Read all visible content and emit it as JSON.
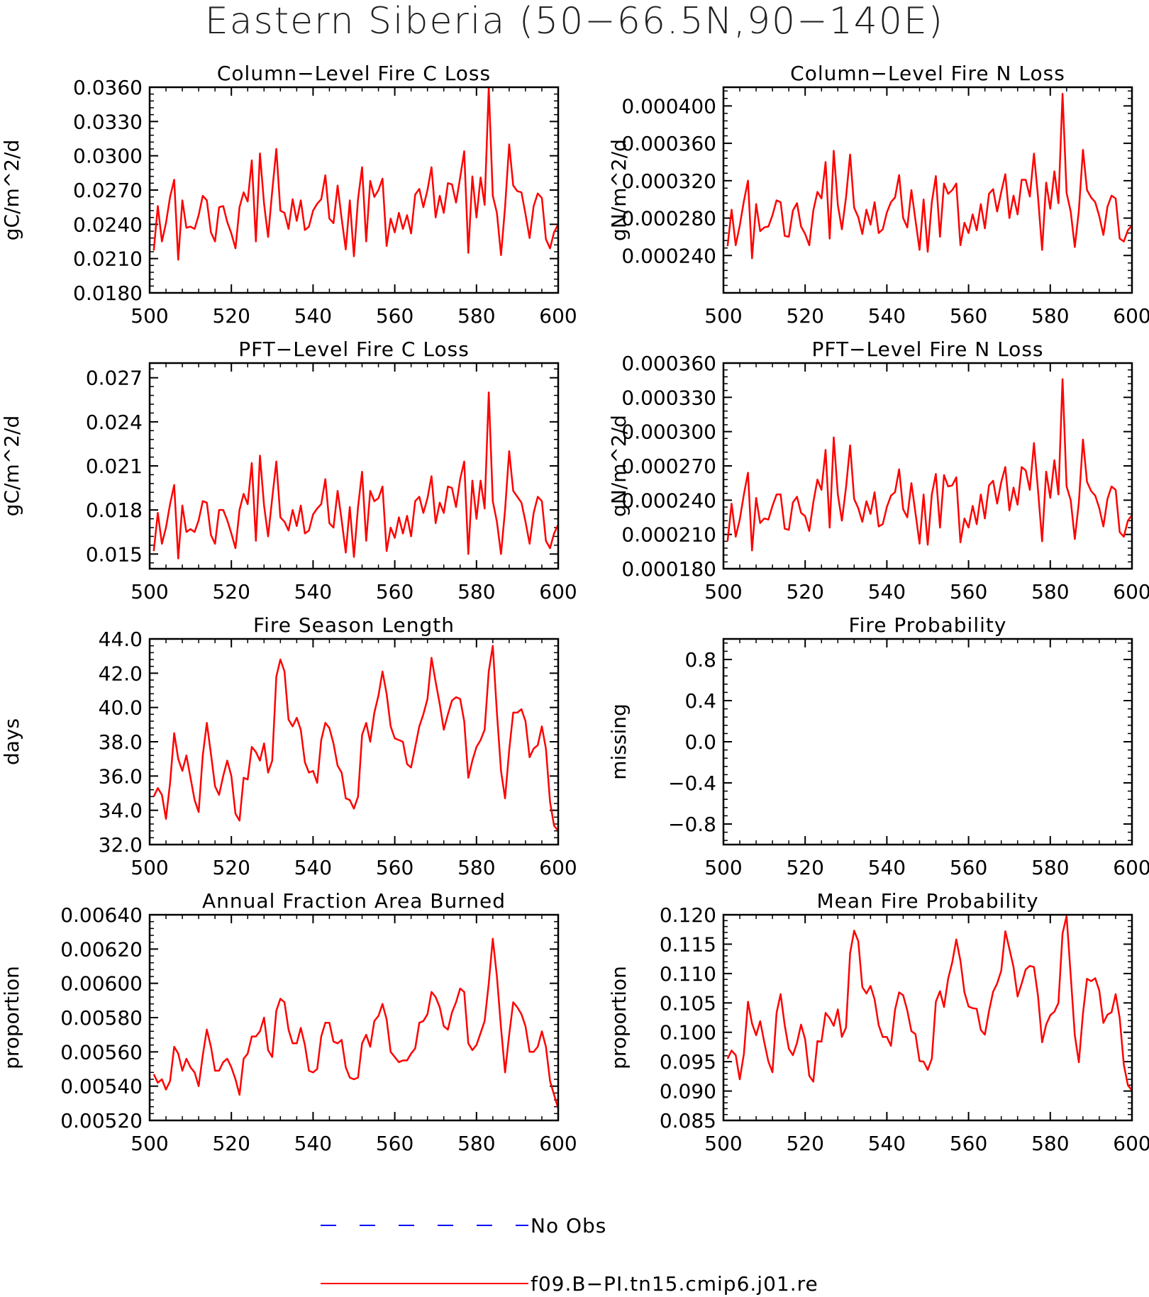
{
  "title": "Eastern Siberia (50−66.5N,90−140E)",
  "colors": {
    "model": "#ff0000",
    "obs": "#0000ff",
    "axis": "#000000"
  },
  "legend": [
    {
      "label": "No Obs",
      "style": "dashed",
      "color": "#0000ff"
    },
    {
      "label": "f09.B−PI.tn15.cmip6.j01.re",
      "style": "solid",
      "color": "#ff0000"
    }
  ],
  "chart_data": [
    {
      "type": "line",
      "title": "Column−Level Fire C Loss",
      "ylabel": "gC/m^2/d",
      "xlim": [
        500,
        600
      ],
      "ylim": [
        0.018,
        0.036
      ],
      "xticks": [
        500,
        520,
        540,
        560,
        580,
        600
      ],
      "yticks": [
        0.018,
        0.021,
        0.024,
        0.027,
        0.03,
        0.033,
        0.036
      ],
      "yticklabels": [
        "0.0180",
        "0.0210",
        "0.0240",
        "0.0270",
        "0.0300",
        "0.0330",
        "0.0360"
      ],
      "series": [
        {
          "x_start": 501,
          "values": [
            0.0217,
            0.0256,
            0.0225,
            0.0241,
            0.0264,
            0.0279,
            0.0209,
            0.0261,
            0.0237,
            0.0238,
            0.0236,
            0.0248,
            0.0265,
            0.0261,
            0.0233,
            0.0225,
            0.0255,
            0.0256,
            0.0242,
            0.0232,
            0.0219,
            0.0255,
            0.0268,
            0.026,
            0.0296,
            0.0225,
            0.0302,
            0.0258,
            0.0229,
            0.0269,
            0.0306,
            0.0252,
            0.025,
            0.0236,
            0.0262,
            0.0243,
            0.0261,
            0.0235,
            0.0238,
            0.0252,
            0.0258,
            0.0262,
            0.0283,
            0.0245,
            0.0241,
            0.0274,
            0.0245,
            0.0218,
            0.0261,
            0.0212,
            0.0262,
            0.029,
            0.0225,
            0.0278,
            0.0264,
            0.027,
            0.028,
            0.0221,
            0.0245,
            0.0233,
            0.025,
            0.0236,
            0.0248,
            0.0232,
            0.0266,
            0.0271,
            0.0255,
            0.027,
            0.029,
            0.0246,
            0.0265,
            0.025,
            0.0276,
            0.0275,
            0.0259,
            0.0281,
            0.0304,
            0.0215,
            0.0282,
            0.0246,
            0.0281,
            0.0257,
            0.036,
            0.0265,
            0.025,
            0.0213,
            0.0255,
            0.031,
            0.0274,
            0.0269,
            0.0268,
            0.0249,
            0.0228,
            0.0256,
            0.0267,
            0.0263,
            0.0227,
            0.0219,
            0.0233,
            0.024
          ]
        }
      ]
    },
    {
      "type": "line",
      "title": "Column−Level Fire N Loss",
      "ylabel": "gN/m^2/d",
      "xlim": [
        500,
        600
      ],
      "ylim": [
        0.0002,
        0.00042
      ],
      "xticks": [
        500,
        520,
        540,
        560,
        580,
        600
      ],
      "yticks": [
        0.00024,
        0.00028,
        0.00032,
        0.00036,
        0.0004
      ],
      "yticklabels": [
        "0.000240",
        "0.000280",
        "0.000320",
        "0.000360",
        "0.000400"
      ],
      "series": [
        {
          "x_start": 501,
          "values": [
            0.00025,
            0.000289,
            0.000251,
            0.000272,
            0.000298,
            0.00032,
            0.000237,
            0.000295,
            0.000266,
            0.00027,
            0.000271,
            0.000283,
            0.000299,
            0.000297,
            0.000261,
            0.00026,
            0.000288,
            0.000296,
            0.000271,
            0.000263,
            0.000251,
            0.000288,
            0.000308,
            0.000301,
            0.00034,
            0.000258,
            0.000352,
            0.000294,
            0.000268,
            0.000302,
            0.000348,
            0.000291,
            0.000281,
            0.000263,
            0.000289,
            0.000273,
            0.000297,
            0.000264,
            0.000268,
            0.000286,
            0.000297,
            0.000302,
            0.000326,
            0.00028,
            0.00027,
            0.00031,
            0.000278,
            0.000246,
            0.0003,
            0.000244,
            0.000297,
            0.000325,
            0.00026,
            0.000317,
            0.000306,
            0.00031,
            0.000317,
            0.000251,
            0.000275,
            0.000264,
            0.000284,
            0.000267,
            0.000295,
            0.000269,
            0.000306,
            0.000311,
            0.000287,
            0.000308,
            0.000327,
            0.00028,
            0.000304,
            0.000284,
            0.000321,
            0.000321,
            0.000303,
            0.000349,
            0.000303,
            0.000246,
            0.000318,
            0.00029,
            0.00033,
            0.000296,
            0.000413,
            0.000307,
            0.000287,
            0.000249,
            0.000288,
            0.000353,
            0.00031,
            0.000302,
            0.000297,
            0.000282,
            0.000262,
            0.000292,
            0.000304,
            0.000301,
            0.000258,
            0.000255,
            0.000267,
            0.000272
          ]
        }
      ]
    },
    {
      "type": "line",
      "title": "PFT−Level Fire C Loss",
      "ylabel": "gC/m^2/d",
      "xlim": [
        500,
        600
      ],
      "ylim": [
        0.014,
        0.028
      ],
      "xticks": [
        500,
        520,
        540,
        560,
        580,
        600
      ],
      "yticks": [
        0.015,
        0.018,
        0.021,
        0.024,
        0.027
      ],
      "yticklabels": [
        "0.015",
        "0.018",
        "0.021",
        "0.024",
        "0.027"
      ],
      "series": [
        {
          "x_start": 501,
          "values": [
            0.0152,
            0.0178,
            0.0157,
            0.0168,
            0.0184,
            0.0197,
            0.0147,
            0.0183,
            0.0165,
            0.0167,
            0.0165,
            0.0173,
            0.0186,
            0.0185,
            0.0163,
            0.0157,
            0.018,
            0.018,
            0.0173,
            0.0164,
            0.0154,
            0.018,
            0.0191,
            0.0184,
            0.0212,
            0.0159,
            0.0217,
            0.0183,
            0.0162,
            0.0188,
            0.0213,
            0.0175,
            0.0172,
            0.0166,
            0.018,
            0.0169,
            0.0183,
            0.0164,
            0.0166,
            0.0177,
            0.0181,
            0.0184,
            0.0201,
            0.0171,
            0.0168,
            0.0193,
            0.0173,
            0.0151,
            0.0182,
            0.0148,
            0.0182,
            0.0206,
            0.0159,
            0.0193,
            0.0186,
            0.0188,
            0.0196,
            0.0152,
            0.0168,
            0.0161,
            0.0175,
            0.0164,
            0.0176,
            0.0162,
            0.0186,
            0.0189,
            0.0178,
            0.0188,
            0.0203,
            0.0171,
            0.0185,
            0.0178,
            0.0196,
            0.0195,
            0.0182,
            0.0201,
            0.0213,
            0.015,
            0.02,
            0.0174,
            0.02,
            0.0181,
            0.026,
            0.0186,
            0.0172,
            0.015,
            0.018,
            0.022,
            0.0193,
            0.0189,
            0.0185,
            0.0172,
            0.0157,
            0.0178,
            0.0189,
            0.0186,
            0.0159,
            0.0154,
            0.0164,
            0.017
          ]
        }
      ]
    },
    {
      "type": "line",
      "title": "PFT−Level Fire N Loss",
      "ylabel": "gN/m^2/d",
      "xlim": [
        500,
        600
      ],
      "ylim": [
        0.00018,
        0.00036
      ],
      "xticks": [
        500,
        520,
        540,
        560,
        580,
        600
      ],
      "yticks": [
        0.00018,
        0.00021,
        0.00024,
        0.00027,
        0.0003,
        0.00033,
        0.00036
      ],
      "yticklabels": [
        "0.000180",
        "0.000210",
        "0.000240",
        "0.000270",
        "0.000300",
        "0.000330",
        "0.000360"
      ],
      "series": [
        {
          "x_start": 501,
          "values": [
            0.000204,
            0.000237,
            0.000208,
            0.000223,
            0.000245,
            0.000264,
            0.000196,
            0.000242,
            0.00022,
            0.000224,
            0.000223,
            0.000235,
            0.000245,
            0.000245,
            0.000215,
            0.000214,
            0.000238,
            0.000243,
            0.000229,
            0.000226,
            0.000213,
            0.000238,
            0.000258,
            0.000249,
            0.000284,
            0.000216,
            0.000295,
            0.000245,
            0.000222,
            0.000251,
            0.000288,
            0.000241,
            0.000233,
            0.000221,
            0.000239,
            0.000228,
            0.000247,
            0.000217,
            0.000219,
            0.000234,
            0.000244,
            0.000247,
            0.000267,
            0.000232,
            0.000225,
            0.000255,
            0.000229,
            0.000202,
            0.000245,
            0.000201,
            0.000245,
            0.000263,
            0.000216,
            0.000262,
            0.000252,
            0.000253,
            0.00026,
            0.000203,
            0.000224,
            0.000216,
            0.000235,
            0.000219,
            0.000245,
            0.000224,
            0.000253,
            0.000257,
            0.000237,
            0.000256,
            0.000269,
            0.000231,
            0.000251,
            0.000236,
            0.000269,
            0.000266,
            0.000249,
            0.00029,
            0.000249,
            0.000204,
            0.000265,
            0.000242,
            0.000275,
            0.000245,
            0.000346,
            0.000252,
            0.00024,
            0.000206,
            0.000238,
            0.000293,
            0.000256,
            0.000248,
            0.000244,
            0.000233,
            0.000217,
            0.000241,
            0.000252,
            0.000249,
            0.000212,
            0.000208,
            0.000222,
            0.000227
          ]
        }
      ]
    },
    {
      "type": "line",
      "title": "Fire Season Length",
      "ylabel": "days",
      "xlim": [
        500,
        600
      ],
      "ylim": [
        32,
        44
      ],
      "xticks": [
        500,
        520,
        540,
        560,
        580,
        600
      ],
      "yticks": [
        32,
        34,
        36,
        38,
        40,
        42,
        44
      ],
      "yticklabels": [
        "32.0",
        "34.0",
        "36.0",
        "38.0",
        "40.0",
        "42.0",
        "44.0"
      ],
      "series": [
        {
          "x_start": 501,
          "values": [
            34.8,
            35.3,
            34.9,
            33.5,
            35.6,
            38.5,
            37.0,
            36.3,
            37.2,
            35.9,
            34.6,
            33.9,
            37.2,
            39.1,
            37.3,
            35.4,
            34.9,
            36.0,
            36.9,
            36.0,
            33.8,
            33.4,
            35.9,
            35.8,
            37.7,
            37.4,
            36.9,
            37.9,
            36.2,
            36.9,
            41.8,
            42.8,
            42.1,
            39.3,
            38.9,
            39.4,
            38.7,
            36.8,
            36.2,
            36.3,
            35.6,
            38.1,
            39.1,
            38.8,
            37.9,
            36.6,
            36.2,
            34.7,
            34.6,
            34.1,
            34.8,
            38.4,
            39.1,
            38.0,
            39.7,
            40.7,
            42.1,
            40.8,
            38.9,
            38.2,
            38.1,
            38.0,
            36.7,
            36.5,
            37.7,
            38.9,
            39.6,
            40.5,
            42.9,
            41.5,
            40.2,
            38.7,
            39.6,
            40.4,
            40.6,
            40.5,
            39.2,
            35.9,
            36.9,
            37.7,
            38.1,
            38.7,
            42.1,
            43.6,
            39.7,
            36.3,
            34.7,
            37.5,
            39.7,
            39.7,
            39.9,
            39.2,
            37.1,
            37.6,
            37.8,
            38.9,
            37.6,
            34.5,
            33.1,
            32.8
          ]
        }
      ]
    },
    {
      "type": "line",
      "title": "Fire Probability",
      "ylabel": "missing",
      "xlim": [
        500,
        600
      ],
      "ylim": [
        -1,
        1
      ],
      "xticks": [
        500,
        520,
        540,
        560,
        580,
        600
      ],
      "yticks": [
        -0.8,
        -0.4,
        0.0,
        0.4,
        0.8
      ],
      "yticklabels": [
        "−0.8",
        "−0.4",
        "0.0",
        "0.4",
        "0.8"
      ],
      "series": []
    },
    {
      "type": "line",
      "title": "Annual Fraction Area Burned",
      "ylabel": "proportion",
      "xlim": [
        500,
        600
      ],
      "ylim": [
        0.0052,
        0.0064
      ],
      "xticks": [
        500,
        520,
        540,
        560,
        580,
        600
      ],
      "yticks": [
        0.0052,
        0.0054,
        0.0056,
        0.0058,
        0.006,
        0.0062,
        0.0064
      ],
      "yticklabels": [
        "0.00520",
        "0.00540",
        "0.00560",
        "0.00580",
        "0.00600",
        "0.00620",
        "0.00640"
      ],
      "series": [
        {
          "x_start": 501,
          "values": [
            0.00547,
            0.00542,
            0.00544,
            0.00538,
            0.00543,
            0.00563,
            0.00559,
            0.00549,
            0.00556,
            0.00551,
            0.00548,
            0.0054,
            0.00558,
            0.00573,
            0.00563,
            0.00549,
            0.00549,
            0.00554,
            0.00556,
            0.00551,
            0.00544,
            0.00535,
            0.00556,
            0.00559,
            0.00569,
            0.00569,
            0.00572,
            0.0058,
            0.00561,
            0.00557,
            0.00584,
            0.00591,
            0.00589,
            0.00573,
            0.00565,
            0.00565,
            0.00574,
            0.00564,
            0.00549,
            0.00548,
            0.0055,
            0.00569,
            0.00577,
            0.00577,
            0.00566,
            0.00565,
            0.00567,
            0.00551,
            0.00545,
            0.00544,
            0.00545,
            0.00565,
            0.0057,
            0.00563,
            0.00578,
            0.00581,
            0.00588,
            0.00579,
            0.0056,
            0.00557,
            0.00554,
            0.00555,
            0.00555,
            0.00559,
            0.00562,
            0.00577,
            0.00578,
            0.00582,
            0.00595,
            0.00592,
            0.00586,
            0.00575,
            0.00573,
            0.00583,
            0.00589,
            0.00597,
            0.00595,
            0.00565,
            0.00561,
            0.00564,
            0.00571,
            0.00578,
            0.006,
            0.00626,
            0.00604,
            0.00574,
            0.00548,
            0.0057,
            0.00589,
            0.00586,
            0.00582,
            0.00575,
            0.0056,
            0.0056,
            0.00563,
            0.00572,
            0.00563,
            0.00543,
            0.00535,
            0.00527
          ]
        }
      ]
    },
    {
      "type": "line",
      "title": "Mean Fire Probability",
      "ylabel": "proportion",
      "xlim": [
        500,
        600
      ],
      "ylim": [
        0.085,
        0.12
      ],
      "xticks": [
        500,
        520,
        540,
        560,
        580,
        600
      ],
      "yticks": [
        0.085,
        0.09,
        0.095,
        0.1,
        0.105,
        0.11,
        0.115,
        0.12
      ],
      "yticklabels": [
        "0.085",
        "0.090",
        "0.095",
        "0.100",
        "0.105",
        "0.110",
        "0.115",
        "0.120"
      ],
      "series": [
        {
          "x_start": 501,
          "values": [
            0.0955,
            0.0969,
            0.0961,
            0.092,
            0.0963,
            0.1052,
            0.1015,
            0.0995,
            0.1019,
            0.0983,
            0.095,
            0.0932,
            0.1033,
            0.1065,
            0.1012,
            0.0972,
            0.0961,
            0.0982,
            0.1013,
            0.0988,
            0.0926,
            0.0916,
            0.0985,
            0.0984,
            0.1033,
            0.1024,
            0.1011,
            0.1039,
            0.0992,
            0.1008,
            0.1135,
            0.1173,
            0.1155,
            0.1077,
            0.1066,
            0.1079,
            0.1056,
            0.1012,
            0.0992,
            0.0992,
            0.0977,
            0.1038,
            0.1068,
            0.1063,
            0.1037,
            0.1002,
            0.0997,
            0.0951,
            0.095,
            0.0936,
            0.0955,
            0.1052,
            0.107,
            0.1043,
            0.1091,
            0.1119,
            0.1158,
            0.1122,
            0.1068,
            0.1044,
            0.1041,
            0.104,
            0.1004,
            0.0996,
            0.1036,
            0.1069,
            0.1083,
            0.1105,
            0.1172,
            0.1142,
            0.1111,
            0.1061,
            0.1083,
            0.1107,
            0.1113,
            0.1111,
            0.1062,
            0.0983,
            0.1013,
            0.1029,
            0.1035,
            0.105,
            0.1168,
            0.1198,
            0.1097,
            0.0995,
            0.0949,
            0.1032,
            0.1091,
            0.1087,
            0.1092,
            0.1071,
            0.1016,
            0.103,
            0.1034,
            0.1065,
            0.1024,
            0.0945,
            0.091,
            0.0901
          ]
        }
      ]
    }
  ]
}
